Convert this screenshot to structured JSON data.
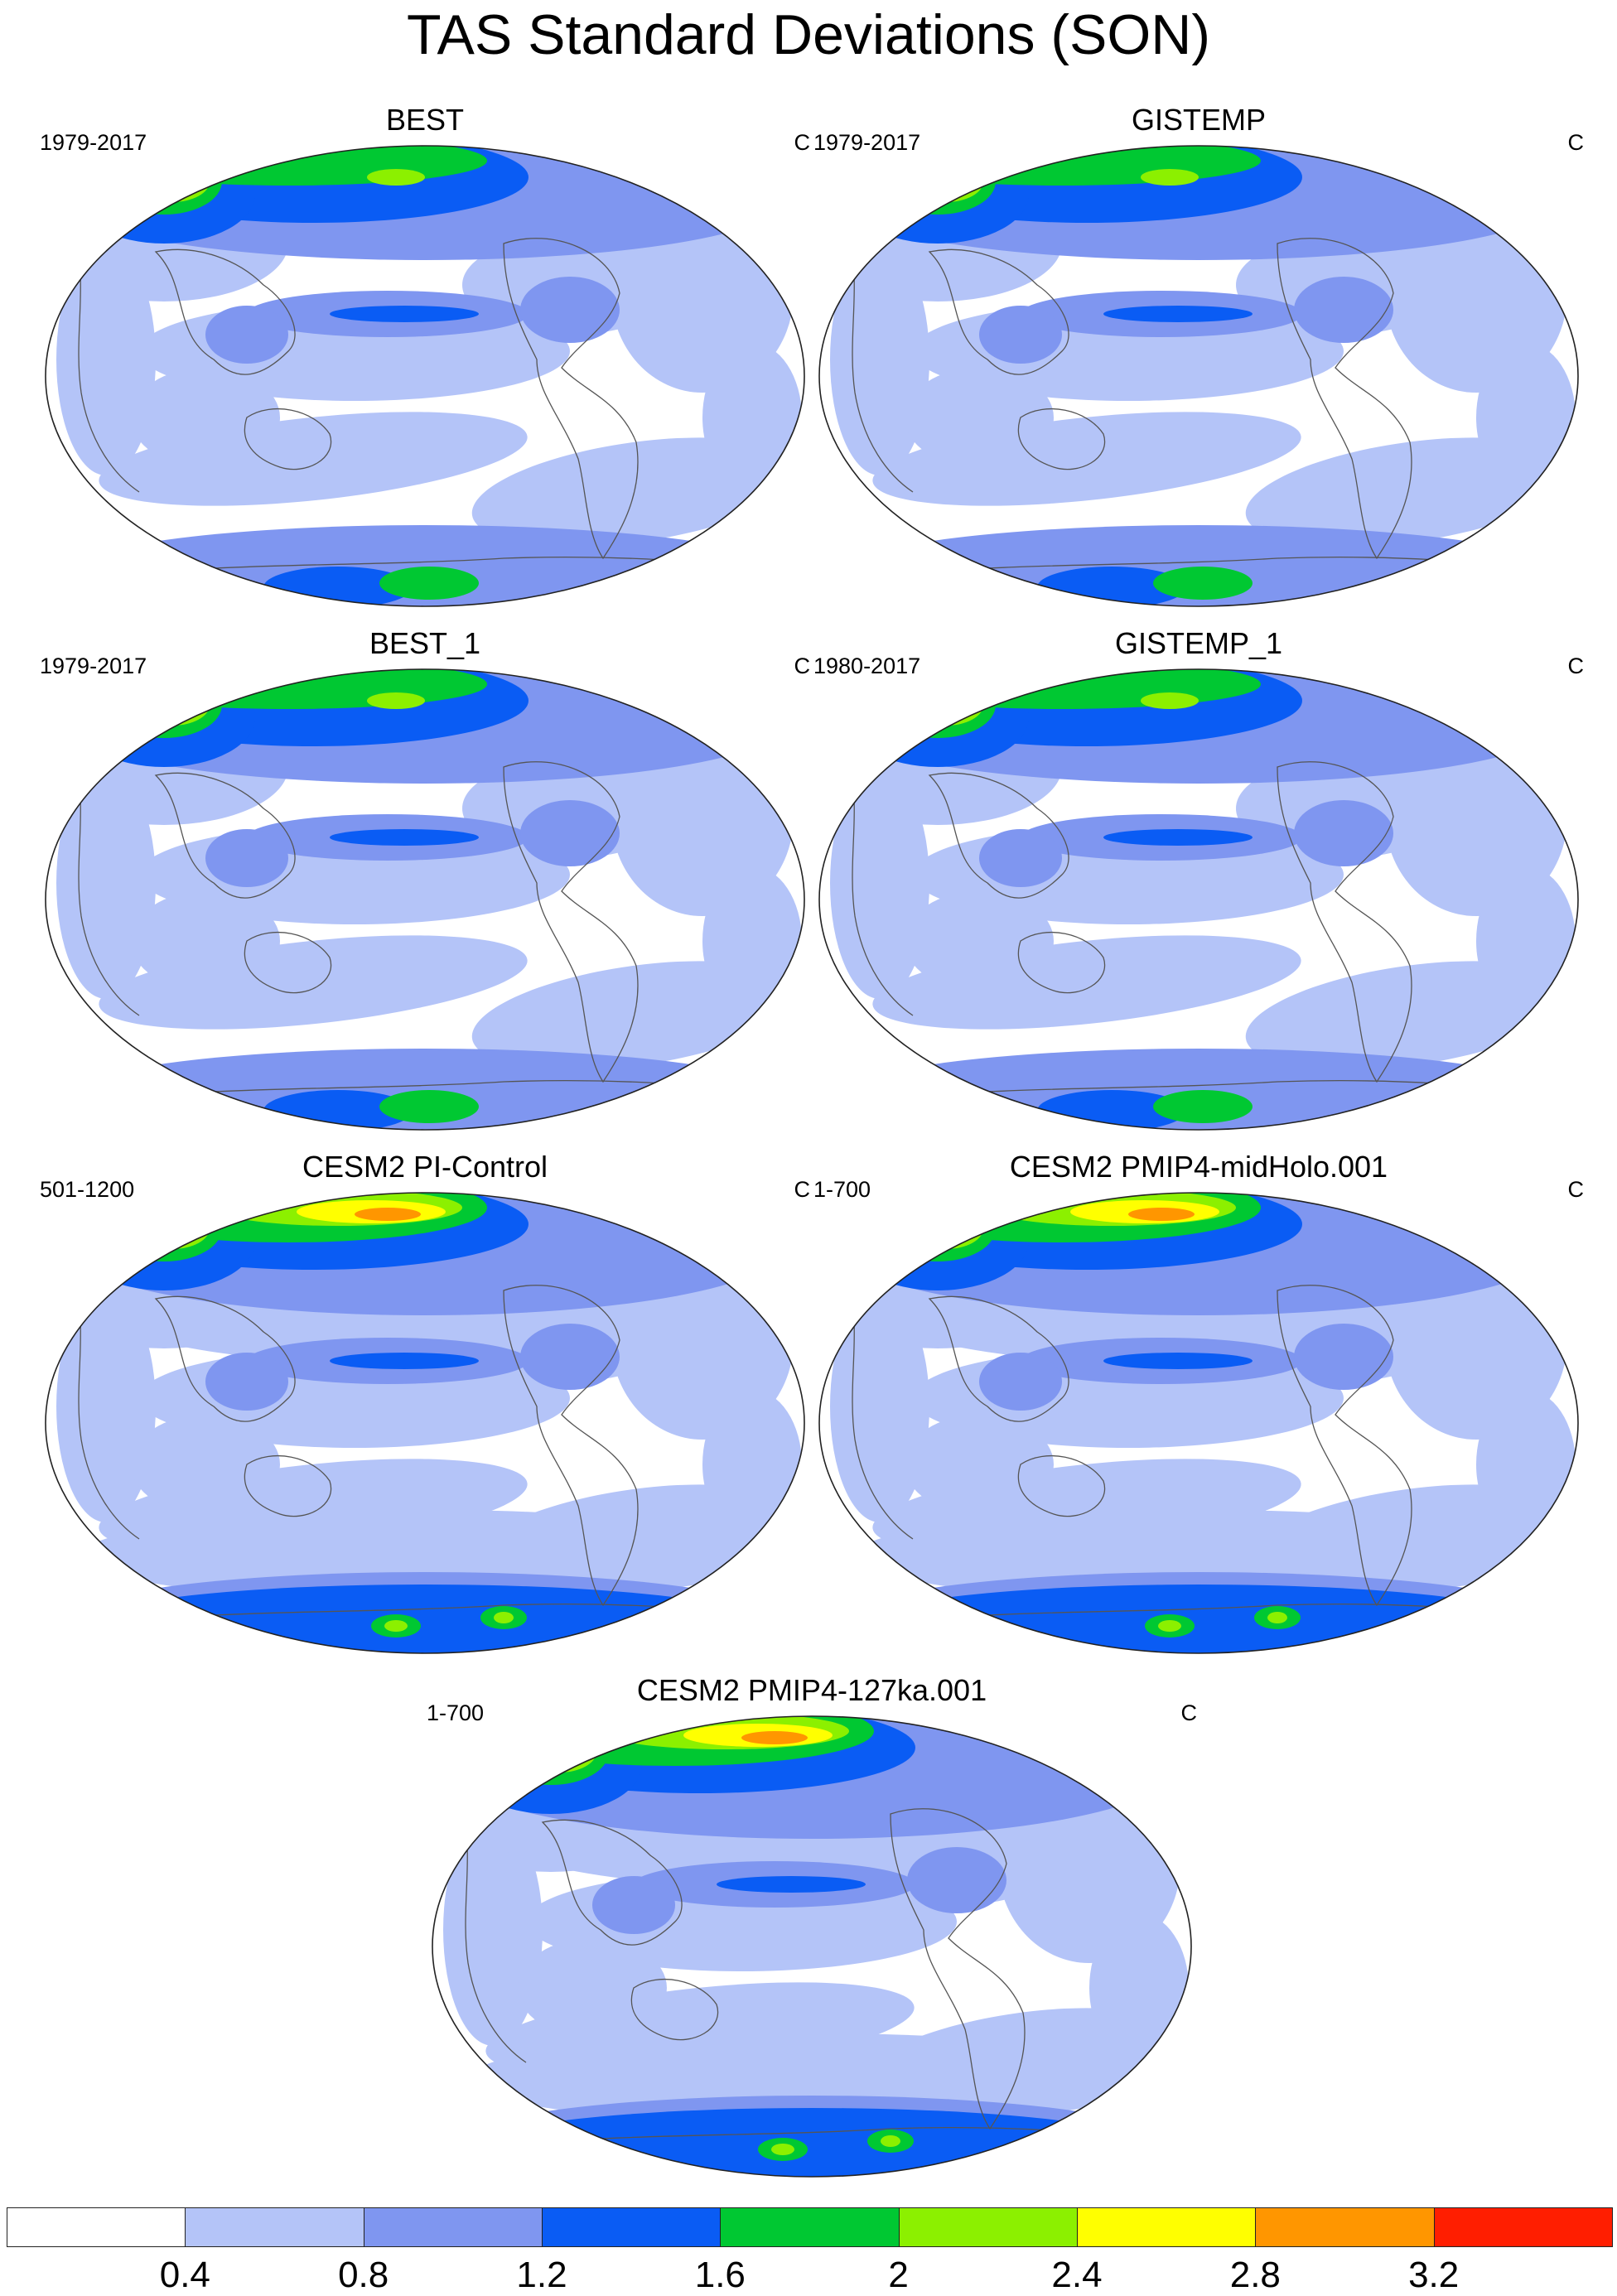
{
  "title": "TAS Standard Deviations (SON)",
  "panels": [
    {
      "title": "BEST",
      "years": "1979-2017",
      "units": "C",
      "map": "obs"
    },
    {
      "title": "GISTEMP",
      "years": "1979-2017",
      "units": "C",
      "map": "obs"
    },
    {
      "title": "BEST_1",
      "years": "1979-2017",
      "units": "C",
      "map": "obs"
    },
    {
      "title": "GISTEMP_1",
      "years": "1980-2017",
      "units": "C",
      "map": "obs"
    },
    {
      "title": "CESM2 PI-Control",
      "years": "501-1200",
      "units": "C",
      "map": "model"
    },
    {
      "title": "CESM2 PMIP4-midHolo.001",
      "years": "1-700",
      "units": "C",
      "map": "model"
    },
    {
      "title": "CESM2 PMIP4-127ka.001",
      "years": "1-700",
      "units": "C",
      "map": "model"
    }
  ],
  "colorbar": {
    "levels": [
      "0.4",
      "0.8",
      "1.2",
      "1.6",
      "2",
      "2.4",
      "2.8",
      "3.2"
    ],
    "colors": [
      "#ffffff",
      "#b4c4f8",
      "#7f96f0",
      "#0a5cf4",
      "#00c832",
      "#8cf000",
      "#ffff00",
      "#ff9600",
      "#ff1e00"
    ]
  }
}
